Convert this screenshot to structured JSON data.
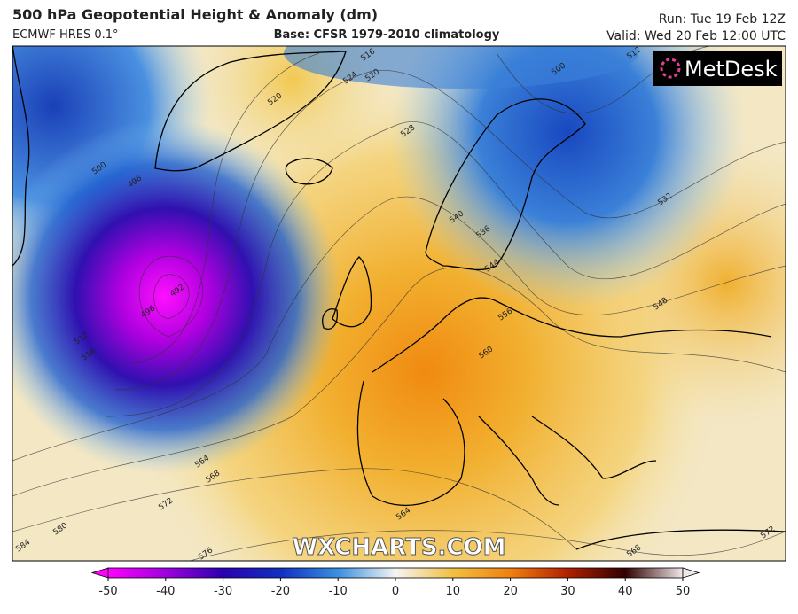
{
  "header": {
    "title": "500 hPa Geopotential Height & Anomaly (dm)",
    "model": "ECMWF HRES 0.1°",
    "base": "Base: CFSR 1979-2010 climatology",
    "run": "Run: Tue 19 Feb 12Z",
    "valid": "Valid: Wed 20 Feb 12:00 UTC"
  },
  "logo": "MetDesk",
  "watermark": "WXCHARTS.COM",
  "contour_labels": [
    516,
    520,
    524,
    520,
    528,
    500,
    512,
    540,
    536,
    532,
    544,
    548,
    556,
    560,
    564,
    568,
    572,
    576,
    580,
    584,
    564,
    568,
    572,
    492,
    496,
    512,
    516,
    500,
    496
  ],
  "colorbar": {
    "ticks": [
      -50,
      -40,
      -30,
      -20,
      -10,
      0,
      10,
      20,
      30,
      40,
      50
    ],
    "colors": [
      "#ff00ff",
      "#a000e0",
      "#2a00b0",
      "#1030c0",
      "#3a90e0",
      "#f4f4f4",
      "#f2c040",
      "#f08010",
      "#b02000",
      "#300000",
      "#f0e8e8"
    ]
  }
}
